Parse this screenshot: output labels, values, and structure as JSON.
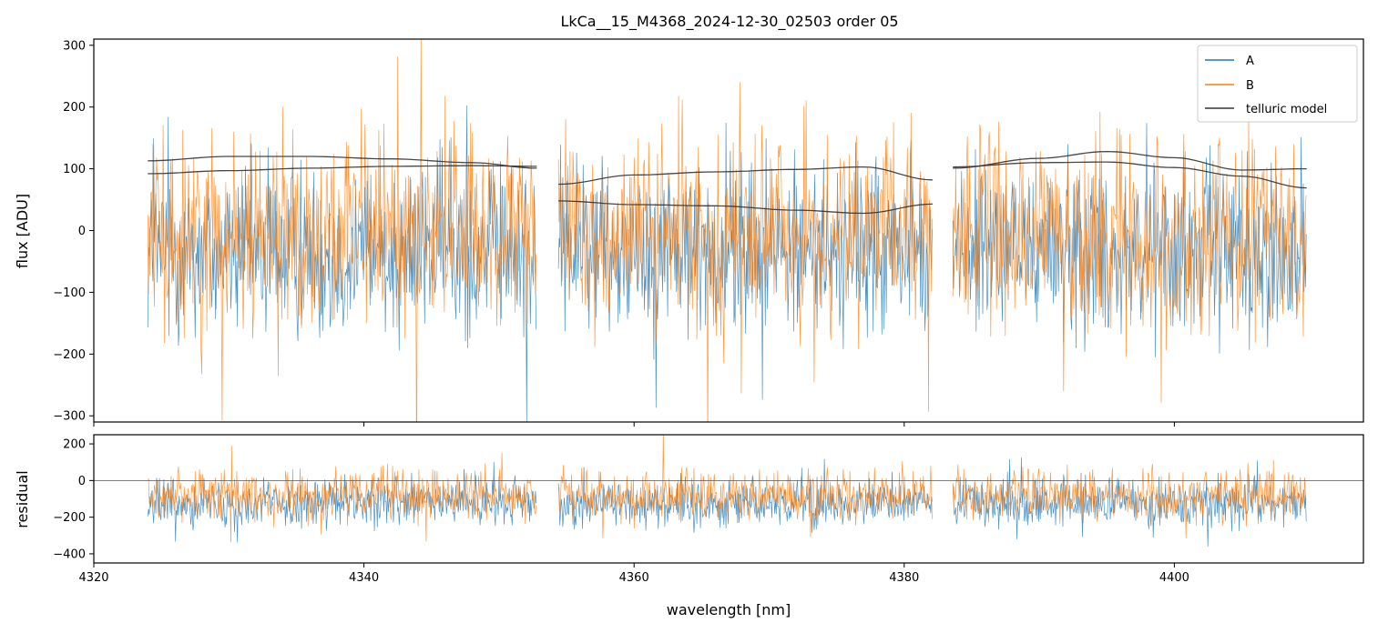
{
  "chart_data": [
    {
      "type": "line",
      "title": "LkCa__15_M4368_2024-12-30_02503  order 05",
      "xlabel": "",
      "ylabel": "flux [ADU]",
      "xlim": [
        4320,
        4414
      ],
      "ylim": [
        -310,
        310
      ],
      "yticks": [
        -300,
        -200,
        -100,
        0,
        100,
        200,
        300
      ],
      "ytick_labels": [
        "−300",
        "−200",
        "−100",
        "0",
        "100",
        "200",
        "300"
      ],
      "xticks": [
        4320,
        4340,
        4360,
        4380,
        4400
      ],
      "legend": {
        "placement": "top-right",
        "entries": [
          "A",
          "B",
          "telluric model"
        ]
      },
      "segments": [
        [
          4324.0,
          4352.8
        ],
        [
          4354.4,
          4382.1
        ],
        [
          4383.6,
          4409.8
        ]
      ],
      "series": [
        {
          "name": "A",
          "color": "#1f77b4",
          "center": -30,
          "spread": 120
        },
        {
          "name": "B",
          "color": "#ff7f0e",
          "center": -5,
          "spread": 130
        },
        {
          "name": "telluric model",
          "color": "#333333",
          "curves": [
            {
              "segment": 0,
              "x": [
                4324,
                4330,
                4336,
                4342,
                4348,
                4352.8
              ],
              "y": [
                113,
                120,
                120,
                116,
                110,
                101
              ]
            },
            {
              "segment": 0,
              "x": [
                4324,
                4330,
                4336,
                4342,
                4348,
                4352.8
              ],
              "y": [
                92,
                97,
                101,
                104,
                105,
                104
              ]
            },
            {
              "segment": 1,
              "x": [
                4354.4,
                4360,
                4366,
                4372,
                4377,
                4382.1
              ],
              "y": [
                75,
                90,
                95,
                99,
                103,
                82
              ]
            },
            {
              "segment": 1,
              "x": [
                4354.4,
                4360,
                4366,
                4372,
                4377,
                4382.1
              ],
              "y": [
                48,
                42,
                40,
                33,
                28,
                43
              ]
            },
            {
              "segment": 2,
              "x": [
                4383.6,
                4390,
                4395,
                4400,
                4405,
                4409.8
              ],
              "y": [
                101,
                117,
                128,
                118,
                98,
                100
              ]
            },
            {
              "segment": 2,
              "x": [
                4383.6,
                4390,
                4395,
                4400,
                4405,
                4409.8
              ],
              "y": [
                103,
                110,
                111,
                102,
                88,
                69
              ]
            }
          ]
        }
      ]
    },
    {
      "type": "line",
      "title": "",
      "xlabel": "wavelength [nm]",
      "ylabel": "residual",
      "xlim": [
        4320,
        4414
      ],
      "ylim": [
        -450,
        250
      ],
      "yticks": [
        -400,
        -200,
        0,
        200
      ],
      "ytick_labels": [
        "−400",
        "−200",
        "0",
        "200"
      ],
      "xticks": [
        4320,
        4340,
        4360,
        4380,
        4400
      ],
      "xtick_labels": [
        "4320",
        "4340",
        "4360",
        "4380",
        "4400"
      ],
      "segments": [
        [
          4324.0,
          4352.8
        ],
        [
          4354.4,
          4382.1
        ],
        [
          4383.6,
          4409.8
        ]
      ],
      "reference_line": 0,
      "series": [
        {
          "name": "A",
          "color": "#1f77b4",
          "center": -120,
          "spread": 110
        },
        {
          "name": "B",
          "color": "#ff7f0e",
          "center": -80,
          "spread": 115
        }
      ]
    }
  ]
}
